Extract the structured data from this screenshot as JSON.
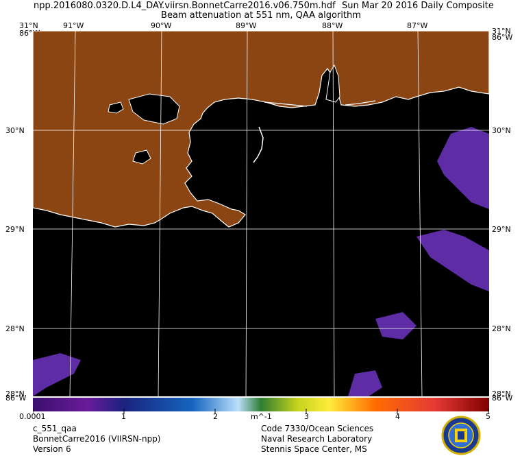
{
  "header": {
    "file_name": "npp.2016080.0320.D.L4_DAY.viirsn.BonnetCarre2016.v06.750m.hdf",
    "date_label": "Sun Mar 20 2016 Daily Composite",
    "subtitle": "Beam attenuation at 551 nm, QAA algorithm"
  },
  "map": {
    "lon_labels": [
      "91°W",
      "90°W",
      "89°W",
      "88°W",
      "87°W"
    ],
    "lat_labels": [
      "30°N",
      "29°N",
      "28°N"
    ],
    "corner_top": "31°N",
    "corner_top_lon": "86°W",
    "corner_bottom": "28°N",
    "corner_bottom_lon": "86°W",
    "land_color": "#8b4513",
    "water_color": "#000000",
    "coast_color": "#ffffff",
    "signal_color": "#5e2ca5"
  },
  "colorbar": {
    "tick_labels": [
      "0.0001",
      "1",
      "2",
      "3",
      "4",
      "5"
    ],
    "unit": "m^-1",
    "colors": [
      "#3b0f6f",
      "#6a1b9a",
      "#311b92",
      "#1a237e",
      "#1565c0",
      "#64b5f6",
      "#bbdefb",
      "#2e7d32",
      "#66bb6a",
      "#c6d31c",
      "#ffeb3b",
      "#ffb300",
      "#ff6d00",
      "#e53935",
      "#b71c1c",
      "#7f0000"
    ]
  },
  "footer": {
    "product": "c_551_qaa",
    "region": "BonnetCarre2016 (VIIRSN-npp)",
    "version": "Version 6",
    "org_line1": "Code 7330/Ocean Sciences",
    "org_line2": "Naval Research Laboratory",
    "org_line3": "Stennis Space Center, MS"
  }
}
